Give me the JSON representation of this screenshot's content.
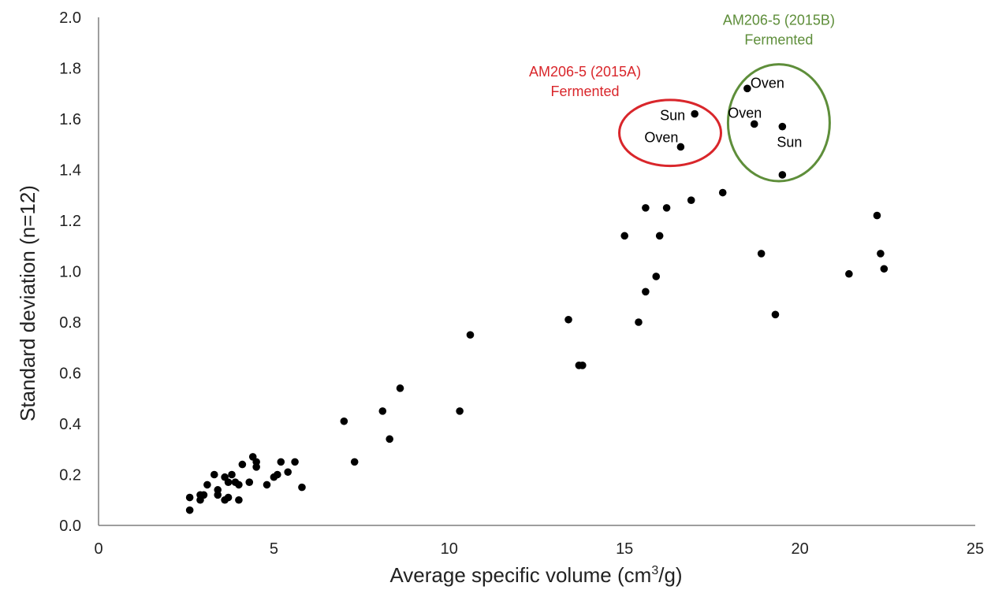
{
  "chart_data": {
    "type": "scatter",
    "xlabel": "Average specific volume (cm",
    "xlabel_sup": "3",
    "xlabel_tail": "/g)",
    "ylabel": "Standard deviation (n=12)",
    "xlim": [
      0,
      25
    ],
    "ylim": [
      0,
      2.0
    ],
    "x_ticks": [
      "0",
      "5",
      "10",
      "15",
      "20",
      "25"
    ],
    "y_ticks": [
      "0.0",
      "0.2",
      "0.4",
      "0.6",
      "0.8",
      "1.0",
      "1.2",
      "1.4",
      "1.6",
      "1.8",
      "2.0"
    ],
    "grid": false,
    "marker_color": "#000000",
    "points": [
      {
        "x": 2.6,
        "y": 0.06
      },
      {
        "x": 2.6,
        "y": 0.11
      },
      {
        "x": 2.9,
        "y": 0.12
      },
      {
        "x": 2.9,
        "y": 0.1
      },
      {
        "x": 3.0,
        "y": 0.12
      },
      {
        "x": 3.1,
        "y": 0.16
      },
      {
        "x": 3.3,
        "y": 0.2
      },
      {
        "x": 3.4,
        "y": 0.14
      },
      {
        "x": 3.4,
        "y": 0.12
      },
      {
        "x": 3.6,
        "y": 0.1
      },
      {
        "x": 3.6,
        "y": 0.19
      },
      {
        "x": 3.7,
        "y": 0.17
      },
      {
        "x": 3.7,
        "y": 0.11
      },
      {
        "x": 3.8,
        "y": 0.2
      },
      {
        "x": 3.9,
        "y": 0.17
      },
      {
        "x": 4.0,
        "y": 0.16
      },
      {
        "x": 4.0,
        "y": 0.1
      },
      {
        "x": 4.1,
        "y": 0.24
      },
      {
        "x": 4.3,
        "y": 0.17
      },
      {
        "x": 4.4,
        "y": 0.27
      },
      {
        "x": 4.5,
        "y": 0.23
      },
      {
        "x": 4.5,
        "y": 0.25
      },
      {
        "x": 4.8,
        "y": 0.16
      },
      {
        "x": 5.0,
        "y": 0.19
      },
      {
        "x": 5.1,
        "y": 0.2
      },
      {
        "x": 5.2,
        "y": 0.25
      },
      {
        "x": 5.4,
        "y": 0.21
      },
      {
        "x": 5.6,
        "y": 0.25
      },
      {
        "x": 5.8,
        "y": 0.15
      },
      {
        "x": 7.0,
        "y": 0.41
      },
      {
        "x": 7.3,
        "y": 0.25
      },
      {
        "x": 8.1,
        "y": 0.45
      },
      {
        "x": 8.3,
        "y": 0.34
      },
      {
        "x": 8.6,
        "y": 0.54
      },
      {
        "x": 10.3,
        "y": 0.45
      },
      {
        "x": 10.6,
        "y": 0.75
      },
      {
        "x": 13.4,
        "y": 0.81
      },
      {
        "x": 13.7,
        "y": 0.63
      },
      {
        "x": 13.8,
        "y": 0.63
      },
      {
        "x": 15.0,
        "y": 1.14
      },
      {
        "x": 15.4,
        "y": 0.8
      },
      {
        "x": 15.6,
        "y": 1.25
      },
      {
        "x": 15.6,
        "y": 0.92
      },
      {
        "x": 15.9,
        "y": 0.98
      },
      {
        "x": 16.0,
        "y": 1.14
      },
      {
        "x": 16.2,
        "y": 1.25
      },
      {
        "x": 16.6,
        "y": 1.49
      },
      {
        "x": 16.9,
        "y": 1.28
      },
      {
        "x": 17.0,
        "y": 1.62
      },
      {
        "x": 17.8,
        "y": 1.31
      },
      {
        "x": 18.5,
        "y": 1.72
      },
      {
        "x": 18.7,
        "y": 1.58
      },
      {
        "x": 18.9,
        "y": 1.07
      },
      {
        "x": 19.3,
        "y": 0.83
      },
      {
        "x": 19.5,
        "y": 1.57
      },
      {
        "x": 19.5,
        "y": 1.38
      },
      {
        "x": 21.4,
        "y": 0.99
      },
      {
        "x": 22.2,
        "y": 1.22
      },
      {
        "x": 22.3,
        "y": 1.07
      },
      {
        "x": 22.4,
        "y": 1.01
      }
    ],
    "point_labels": [
      {
        "text": "Sun",
        "x": 17.0,
        "y": 1.62,
        "anchor": "end",
        "dx": -12,
        "dy": 8
      },
      {
        "text": "Oven",
        "x": 16.6,
        "y": 1.49,
        "anchor": "end",
        "dx": -3,
        "dy": -6
      },
      {
        "text": "Oven",
        "x": 18.5,
        "y": 1.72,
        "anchor": "start",
        "dx": 4,
        "dy": -1
      },
      {
        "text": "Oven",
        "x": 18.7,
        "y": 1.58,
        "anchor": "middle",
        "dx": -12,
        "dy": -8
      },
      {
        "text": "Sun",
        "x": 19.5,
        "y": 1.57,
        "anchor": "middle",
        "dx": 9,
        "dy": 26
      }
    ],
    "groups": [
      {
        "line1": "AM206-5 (2015A)",
        "line2": "Fermented",
        "color": "#d9262b",
        "ellipse": {
          "cx": 16.3,
          "cy": 1.545,
          "rx": 1.45,
          "ry": 0.13
        }
      },
      {
        "line1": "AM206-5 (2015B)",
        "line2": "Fermented",
        "color": "#5e8e3a",
        "ellipse": {
          "cx": 19.4,
          "cy": 1.585,
          "rx": 1.45,
          "ry": 0.23
        }
      }
    ]
  }
}
